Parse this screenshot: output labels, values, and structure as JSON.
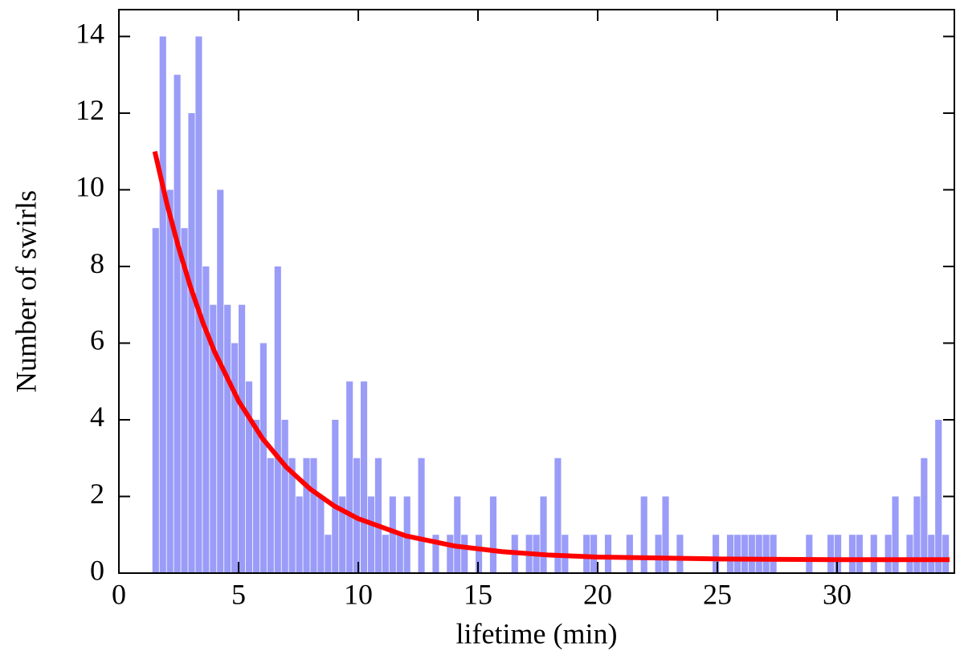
{
  "chart_data": {
    "type": "histogram",
    "xlabel": "lifetime (min)",
    "ylabel": "Number of swirls",
    "color": "#9a9cf8",
    "bins": [
      1.4,
      1.7,
      2,
      2.3,
      2.6,
      2.9,
      3.2,
      3.5,
      3.8,
      4.1,
      4.4,
      4.7,
      5,
      5.3,
      5.6,
      5.9,
      6.2,
      6.5,
      6.8,
      7.1,
      7.4,
      7.7,
      8,
      8.3,
      8.6,
      8.9,
      9.2,
      9.5,
      9.8,
      10.1,
      10.4,
      10.7,
      11,
      11.3,
      11.6,
      11.9,
      12.2,
      12.5,
      12.8,
      13.1,
      13.4,
      13.7,
      14,
      14.3,
      14.6,
      14.9,
      15.2,
      15.5,
      15.8,
      16.1,
      16.4,
      16.7,
      17,
      17.3,
      17.6,
      17.9,
      18.2,
      18.5,
      18.8,
      19.1,
      19.4,
      19.7,
      20,
      20.3,
      20.6,
      20.9,
      21.2,
      21.5,
      21.8,
      22.1,
      22.4,
      22.7,
      23,
      23.3,
      23.6,
      23.9,
      24.2,
      24.5,
      24.8,
      25.1,
      25.4,
      25.7,
      26,
      26.3,
      26.6,
      26.9,
      27.2,
      27.5,
      27.8,
      28.1,
      28.4,
      28.7,
      29,
      29.3,
      29.6,
      29.9,
      30.2,
      30.5,
      30.8,
      31.1,
      31.4,
      31.7,
      32,
      32.3,
      32.6,
      32.9,
      33.2,
      33.5,
      33.8,
      34.1,
      34.4,
      34.7
    ],
    "values": [
      9,
      14,
      10,
      13,
      9,
      12,
      14,
      8,
      7,
      10,
      7,
      6,
      7,
      5,
      4,
      6,
      3,
      8,
      4,
      3,
      2,
      3,
      3,
      2,
      1,
      4,
      2,
      5,
      3,
      5,
      2,
      3,
      1,
      2,
      1,
      2,
      0,
      3,
      0,
      1,
      0,
      1,
      2,
      1,
      0,
      1,
      0,
      2,
      0,
      0,
      1,
      0,
      1,
      1,
      2,
      0,
      3,
      1,
      0,
      0,
      1,
      1,
      0,
      1,
      0,
      0,
      1,
      0,
      2,
      0,
      1,
      2,
      0,
      1,
      0,
      0,
      0,
      0,
      1,
      0,
      1,
      1,
      1,
      1,
      1,
      1,
      1,
      0,
      0,
      0,
      0,
      1,
      0,
      0,
      1,
      1,
      0,
      1,
      1,
      0,
      1,
      0,
      1,
      2,
      0,
      1,
      2,
      3,
      1,
      4,
      1
    ],
    "fit": {
      "color": "#ff0000",
      "x": [
        1.5,
        2,
        2.5,
        3,
        3.5,
        4,
        5,
        6,
        7,
        8,
        9,
        10,
        12,
        14,
        16,
        18,
        20,
        25,
        30,
        34.7
      ],
      "values": [
        11.0,
        9.65,
        8.48,
        7.45,
        6.55,
        5.77,
        4.49,
        3.51,
        2.76,
        2.19,
        1.75,
        1.42,
        0.97,
        0.71,
        0.56,
        0.47,
        0.42,
        0.37,
        0.35,
        0.35
      ]
    },
    "xlim": [
      0,
      34.9
    ],
    "ylim": [
      0,
      14.7
    ],
    "xticks": [
      0,
      5,
      10,
      15,
      20,
      25,
      30
    ],
    "yticks": [
      0,
      2,
      4,
      6,
      8,
      10,
      12,
      14
    ]
  }
}
